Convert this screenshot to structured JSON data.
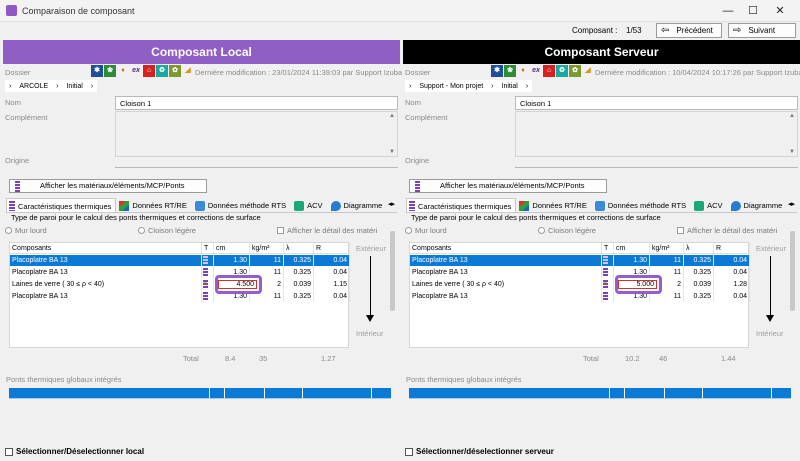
{
  "window": {
    "title": "Comparaison de composant",
    "minimize": "—",
    "maximize": "☐",
    "close": "✕"
  },
  "nav": {
    "label": "Composant :",
    "count": "1/53",
    "prev": "Précédent",
    "next": "Suivant"
  },
  "left": {
    "header": "Composant Local",
    "dossier_label": "Dossier",
    "last_modified": "Dernière modification : 23/01/2024 11:39:03 par Support Izuba",
    "crumb": [
      "ARCOLE",
      "Initial"
    ],
    "nom_label": "Nom",
    "nom_value": "Cloison 1",
    "complement_label": "Complément",
    "origine_label": "Origine",
    "show_btn": "Afficher les matériaux/éléments/MCP/Ponts",
    "tabs": [
      "Caractéristiques thermiques",
      "Données RT/RE",
      "Données méthode RTS",
      "ACV",
      "Diagramme"
    ],
    "wall_type": "Type de paroi pour le calcul des ponts thermiques et corrections de surface",
    "radio1": "Mur lourd",
    "radio2": "Cloison légère",
    "detail_chk": "Afficher le détail des matéri",
    "table": {
      "headers": [
        "Composants",
        "T",
        "cm",
        "kg/m²",
        "λ",
        "R"
      ],
      "rows": [
        {
          "name": "Placoplatre BA 13",
          "cm": "1.30",
          "kg": "11",
          "lambda": "0.325",
          "r": "0.04",
          "selected": true
        },
        {
          "name": "Placoplatre BA 13",
          "cm": "1.30",
          "kg": "11",
          "lambda": "0.325",
          "r": "0.04",
          "selected": false
        },
        {
          "name": "Laines de verre ( 30 ≤ ρ < 40)",
          "cm": "4.500",
          "kg": "2",
          "lambda": "0.039",
          "r": "1.15",
          "selected": false,
          "editing": true
        },
        {
          "name": "Placoplatre BA 13",
          "cm": "1.30",
          "kg": "11",
          "lambda": "0.325",
          "r": "0.04",
          "selected": false
        }
      ]
    },
    "exterior": "Extérieur",
    "interior": "Intérieur",
    "total_label": "Total",
    "total_cm": "8.4",
    "total_kg": "35",
    "total_r": "1.27",
    "ptg_label": "Ponts thermiques globaux intégrés",
    "select_label": "Sélectionner/Déselectionner local"
  },
  "right": {
    "header": "Composant Serveur",
    "dossier_label": "Dossier",
    "last_modified": "Dernière modification : 10/04/2024 10:17:26 par Support Izuba",
    "crumb": [
      "Support - Mon projet",
      "Initial"
    ],
    "nom_label": "Nom",
    "nom_value": "Cloison 1",
    "complement_label": "Complément",
    "origine_label": "Origine",
    "show_btn": "Afficher les matériaux/éléments/MCP/Ponts",
    "tabs": [
      "Caractéristiques thermiques",
      "Données RT/RE",
      "Données méthode RTS",
      "ACV",
      "Diagramme"
    ],
    "wall_type": "Type de paroi pour le calcul des ponts thermiques et corrections de surface",
    "radio1": "Mur lourd",
    "radio2": "Cloison légère",
    "detail_chk": "Afficher le détail des matéri",
    "table": {
      "headers": [
        "Composants",
        "T",
        "cm",
        "kg/m²",
        "λ",
        "R"
      ],
      "rows": [
        {
          "name": "Placoplatre BA 13",
          "cm": "1.30",
          "kg": "11",
          "lambda": "0.325",
          "r": "0.04",
          "selected": true
        },
        {
          "name": "Placoplatre BA 13",
          "cm": "1.30",
          "kg": "11",
          "lambda": "0.325",
          "r": "0.04",
          "selected": false
        },
        {
          "name": "Laines de verre ( 30 ≤ ρ < 40)",
          "cm": "5.000",
          "kg": "2",
          "lambda": "0.039",
          "r": "1.28",
          "selected": false,
          "editing": true
        },
        {
          "name": "Placoplatre BA 13",
          "cm": "1.30",
          "kg": "11",
          "lambda": "0.325",
          "r": "0.04",
          "selected": false
        }
      ]
    },
    "exterior": "Extérieur",
    "interior": "Intérieur",
    "total_label": "Total",
    "total_cm": "10.2",
    "total_kg": "46",
    "total_r": "1.44",
    "ptg_label": "Ponts thermiques globaux intégrés",
    "select_label": "Sélectionner/déselectionner serveur"
  },
  "colors": {
    "local_header": "#8f5fc6",
    "server_header": "#000000",
    "selection": "#0a7ad6",
    "highlight": "#8f5fd0"
  }
}
